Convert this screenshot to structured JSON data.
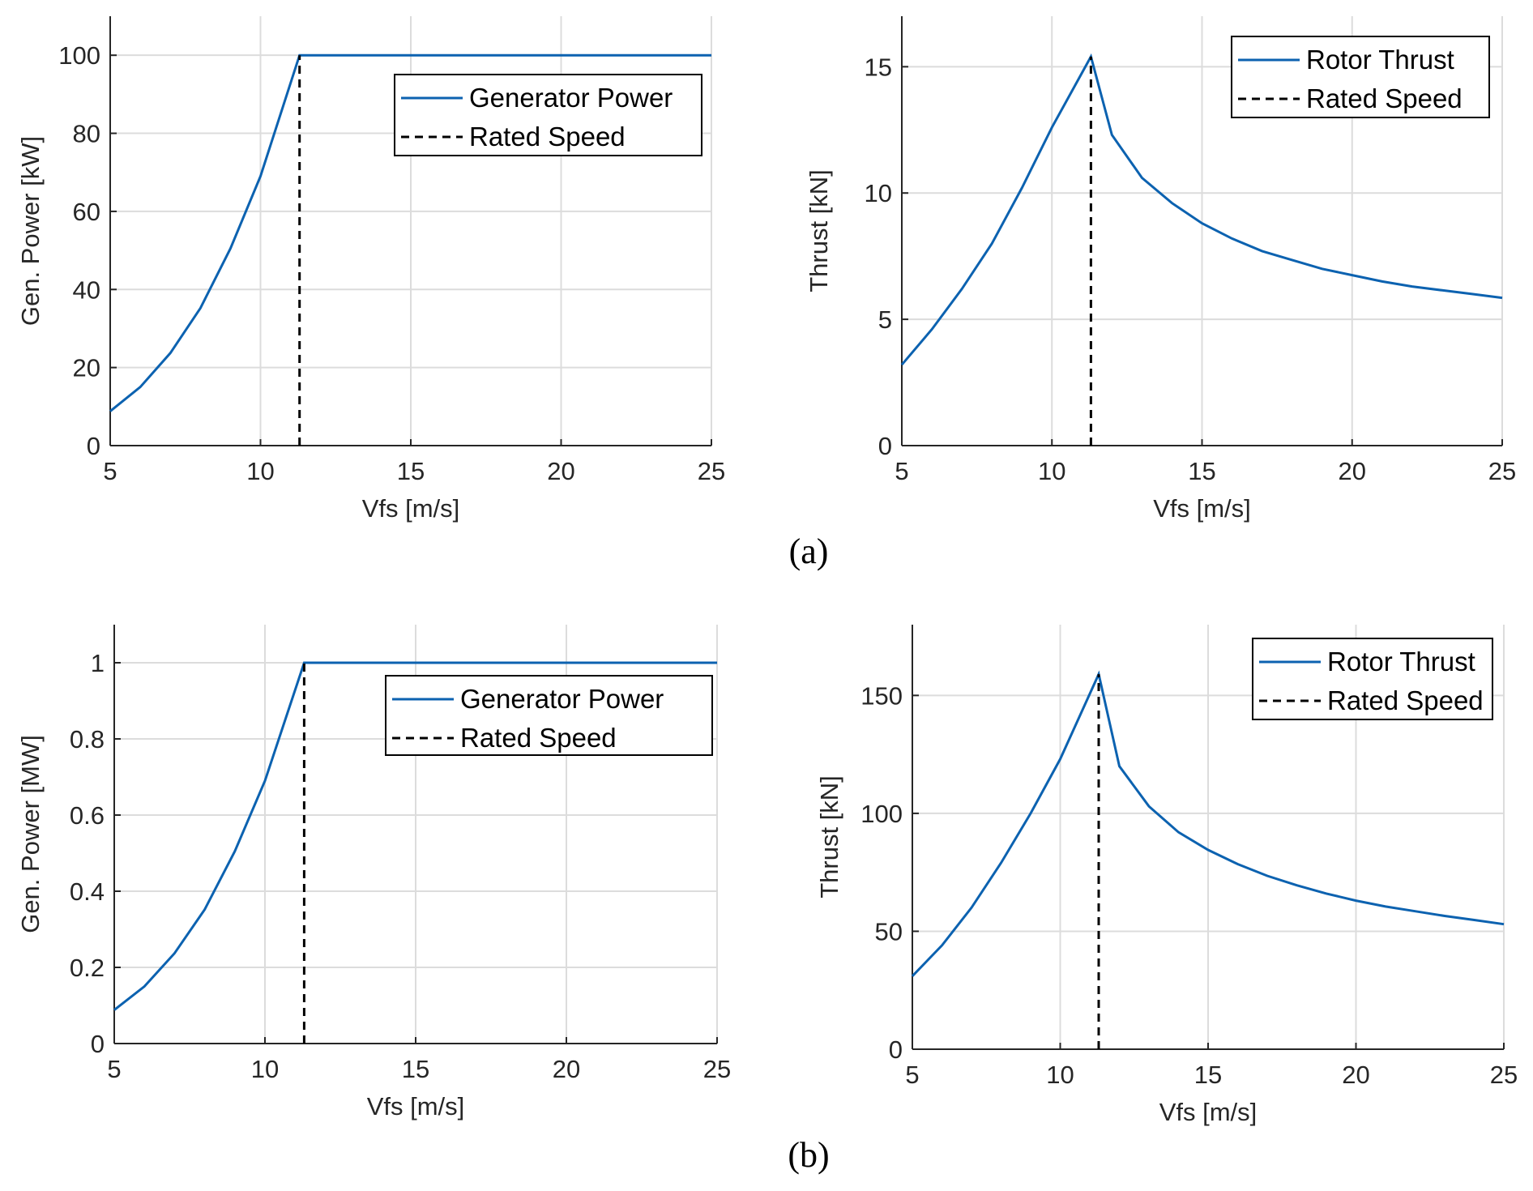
{
  "colors": {
    "series": "#0c62b0",
    "rated": "#000000",
    "grid": "#dcdcdc",
    "axis": "#262626"
  },
  "captions": [
    "(a)",
    "(b)"
  ],
  "chart_data": [
    {
      "type": "line",
      "xlabel": "Vfs [m/s]",
      "ylabel": "Gen. Power [kW]",
      "xlim": [
        5,
        25
      ],
      "ylim": [
        0,
        110
      ],
      "xticks": [
        5,
        10,
        15,
        20,
        25
      ],
      "yticks": [
        0,
        20,
        40,
        60,
        80,
        100
      ],
      "grid": true,
      "legend": "top-right",
      "series": [
        {
          "name": "Generator Power",
          "x": [
            5,
            6,
            7,
            8,
            9,
            10,
            11.3,
            12,
            13,
            14,
            15,
            16,
            17,
            18,
            19,
            20,
            21,
            22,
            23,
            24,
            25
          ],
          "y": [
            8.8,
            15,
            23.7,
            35.2,
            50.5,
            69,
            100,
            100,
            100,
            100,
            100,
            100,
            100,
            100,
            100,
            100,
            100,
            100,
            100,
            100,
            100
          ]
        },
        {
          "name": "Rated Speed",
          "style": "dashed",
          "x": [
            11.3,
            11.3
          ],
          "y": [
            0,
            100
          ]
        }
      ]
    },
    {
      "type": "line",
      "xlabel": "Vfs [m/s]",
      "ylabel": "Thrust [kN]",
      "xlim": [
        5,
        25
      ],
      "ylim": [
        0,
        17
      ],
      "xticks": [
        5,
        10,
        15,
        20,
        25
      ],
      "yticks": [
        0,
        5,
        10,
        15
      ],
      "grid": true,
      "legend": "top-right",
      "series": [
        {
          "name": "Rotor Thrust",
          "x": [
            5,
            6,
            7,
            8,
            9,
            10,
            11.3,
            12,
            13,
            14,
            15,
            16,
            17,
            18,
            19,
            20,
            21,
            22,
            23,
            24,
            25
          ],
          "y": [
            3.2,
            4.6,
            6.2,
            8.0,
            10.2,
            12.6,
            15.4,
            12.3,
            10.6,
            9.6,
            8.8,
            8.2,
            7.7,
            7.35,
            7.0,
            6.75,
            6.5,
            6.3,
            6.15,
            6.0,
            5.85
          ]
        },
        {
          "name": "Rated Speed",
          "style": "dashed",
          "x": [
            11.3,
            11.3
          ],
          "y": [
            0,
            15.4
          ]
        }
      ]
    },
    {
      "type": "line",
      "xlabel": "Vfs [m/s]",
      "ylabel": "Gen. Power [MW]",
      "xlim": [
        5,
        25
      ],
      "ylim": [
        0,
        1.1
      ],
      "xticks": [
        5,
        10,
        15,
        20,
        25
      ],
      "yticks": [
        0,
        0.2,
        0.4,
        0.6,
        0.8,
        1
      ],
      "grid": true,
      "legend": "top-right",
      "series": [
        {
          "name": "Generator Power",
          "x": [
            5,
            6,
            7,
            8,
            9,
            10,
            11.3,
            12,
            13,
            14,
            15,
            16,
            17,
            18,
            19,
            20,
            21,
            22,
            23,
            24,
            25
          ],
          "y": [
            0.088,
            0.15,
            0.237,
            0.352,
            0.505,
            0.69,
            1,
            1,
            1,
            1,
            1,
            1,
            1,
            1,
            1,
            1,
            1,
            1,
            1,
            1,
            1
          ]
        },
        {
          "name": "Rated Speed",
          "style": "dashed",
          "x": [
            11.3,
            11.3
          ],
          "y": [
            0,
            1
          ]
        }
      ]
    },
    {
      "type": "line",
      "xlabel": "Vfs [m/s]",
      "ylabel": "Thrust [kN]",
      "xlim": [
        5,
        25
      ],
      "ylim": [
        0,
        180
      ],
      "xticks": [
        5,
        10,
        15,
        20,
        25
      ],
      "yticks": [
        0,
        50,
        100,
        150
      ],
      "grid": true,
      "legend": "top-right",
      "series": [
        {
          "name": "Rotor Thrust",
          "x": [
            5,
            6,
            7,
            8,
            9,
            10,
            11.3,
            12,
            13,
            14,
            15,
            16,
            17,
            18,
            19,
            20,
            21,
            22,
            23,
            24,
            25
          ],
          "y": [
            31,
            44,
            60,
            79,
            100,
            123,
            159,
            120,
            103,
            92,
            84.5,
            78.5,
            73.5,
            69.5,
            66,
            63,
            60.5,
            58.5,
            56.5,
            54.8,
            53
          ]
        },
        {
          "name": "Rated Speed",
          "style": "dashed",
          "x": [
            11.3,
            11.3
          ],
          "y": [
            0,
            159
          ]
        }
      ]
    }
  ]
}
